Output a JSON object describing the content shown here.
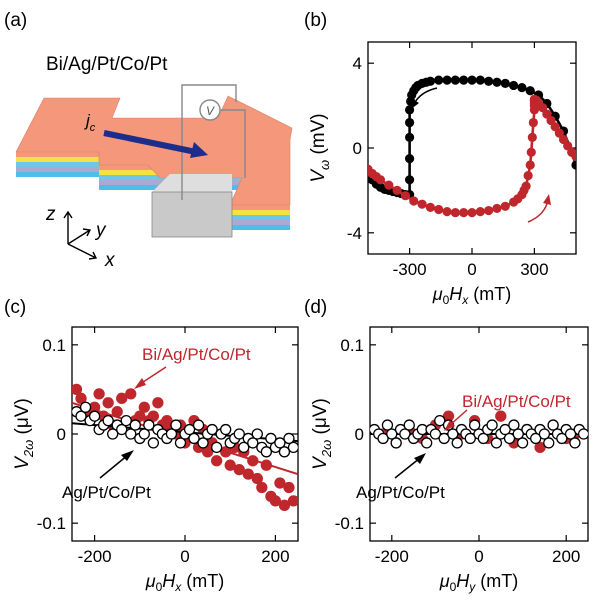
{
  "figure": {
    "panel_labels": [
      "(a)",
      "(b)",
      "(c)",
      "(d)"
    ],
    "colors": {
      "red": "#c0272d",
      "black": "#000000",
      "blue": "#1c2d8c",
      "orange": "#f4977a"
    }
  },
  "panel_a": {
    "title": "Bi/Ag/Pt/Co/Pt",
    "current_label": "j",
    "current_sub": "c",
    "voltmeter": "V",
    "axes": {
      "z": "z",
      "y": "y",
      "x": "x"
    }
  },
  "chart_data": [
    {
      "panel": "(b)",
      "type": "line",
      "xlabel_mu": "μ",
      "xlabel_sub0": "0",
      "xlabel_H": "H",
      "xlabel_sub": "x",
      "xlabel_unit": "(mT)",
      "ylabel_V": "V",
      "ylabel_sub": "ω",
      "ylabel_unit": "(mV)",
      "xlim": [
        -500,
        500
      ],
      "ylim": [
        -5,
        5
      ],
      "xticks": [
        -300,
        0,
        300
      ],
      "yticks": [
        4,
        0,
        -4
      ],
      "xtick_labels": [
        "-300",
        "0",
        "300"
      ],
      "ytick_labels": [
        "4",
        "0",
        "-4"
      ],
      "series": [
        {
          "color": "#000000",
          "x": [
            -500,
            -480,
            -460,
            -440,
            -420,
            -400,
            -380,
            -360,
            -340,
            -320,
            -300,
            -300,
            -300,
            -300,
            -300,
            -300,
            -295,
            -290,
            -280,
            -270,
            -260,
            -240,
            -220,
            -200,
            -160,
            -120,
            -80,
            -40,
            0,
            40,
            80,
            120,
            160,
            200,
            240,
            280,
            320,
            360,
            400,
            440,
            480,
            500
          ],
          "y": [
            -1.3,
            -1.5,
            -1.7,
            -1.85,
            -1.95,
            -2.0,
            -2.05,
            -2.1,
            -2.15,
            -2.2,
            -2.2,
            -1.5,
            -0.5,
            0.5,
            1.2,
            1.8,
            2.2,
            2.5,
            2.7,
            2.85,
            2.95,
            3.05,
            3.1,
            3.15,
            3.2,
            3.2,
            3.2,
            3.2,
            3.2,
            3.2,
            3.15,
            3.1,
            3.05,
            2.95,
            2.85,
            2.7,
            2.5,
            2.1,
            1.5,
            0.8,
            -0.2,
            -0.8
          ]
        },
        {
          "color": "#c0272d",
          "x": [
            -500,
            -480,
            -460,
            -440,
            -400,
            -360,
            -320,
            -280,
            -240,
            -200,
            -160,
            -120,
            -80,
            -40,
            0,
            40,
            80,
            120,
            160,
            200,
            220,
            240,
            250,
            260,
            270,
            280,
            285,
            290,
            295,
            300,
            300,
            300,
            300,
            300,
            300,
            310,
            320,
            340,
            360,
            380,
            400,
            420,
            440,
            460,
            480,
            500
          ],
          "y": [
            -1.0,
            -1.2,
            -1.35,
            -1.5,
            -1.75,
            -2.0,
            -2.25,
            -2.5,
            -2.65,
            -2.8,
            -2.9,
            -3.0,
            -3.05,
            -3.05,
            -3.05,
            -3.0,
            -2.95,
            -2.85,
            -2.75,
            -2.55,
            -2.4,
            -2.2,
            -2.0,
            -1.8,
            -1.3,
            -0.8,
            -0.2,
            0.5,
            1.2,
            1.8,
            2.0,
            2.1,
            2.2,
            2.25,
            2.3,
            2.25,
            2.1,
            1.9,
            1.6,
            1.3,
            1.0,
            0.7,
            0.4,
            0.1,
            -0.2,
            -0.4
          ]
        }
      ]
    },
    {
      "panel": "(c)",
      "type": "scatter",
      "xlabel_mu": "μ",
      "xlabel_sub0": "0",
      "xlabel_H": "H",
      "xlabel_sub": "x",
      "xlabel_unit": "(mT)",
      "ylabel_V": "V",
      "ylabel_sub": "2ω",
      "ylabel_unit": "(μV)",
      "xlim": [
        -250,
        250
      ],
      "ylim": [
        -0.12,
        0.12
      ],
      "xticks": [
        -200,
        0,
        200
      ],
      "yticks": [
        0.1,
        0,
        -0.1
      ],
      "xtick_labels": [
        "-200",
        "0",
        "200"
      ],
      "ytick_labels": [
        "0.1",
        "0",
        "-0.1"
      ],
      "annotations": [
        "Bi/Ag/Pt/Co/Pt",
        "Ag/Pt/Co/Pt"
      ],
      "series": [
        {
          "color": "#c0272d",
          "filled": true,
          "fit": [
            [
              -250,
              0.035
            ],
            [
              250,
              -0.045
            ]
          ],
          "x": [
            -240,
            -230,
            -220,
            -200,
            -190,
            -180,
            -170,
            -160,
            -150,
            -140,
            -120,
            -110,
            -100,
            -90,
            -80,
            -70,
            -60,
            -50,
            -40,
            -30,
            -20,
            -10,
            0,
            10,
            20,
            30,
            40,
            50,
            60,
            70,
            80,
            90,
            100,
            110,
            120,
            130,
            140,
            150,
            160,
            170,
            180,
            190,
            200,
            210,
            220,
            230,
            240
          ],
          "y": [
            0.05,
            0.04,
            0.025,
            0.03,
            0.045,
            0.02,
            0.035,
            0.01,
            0.025,
            0.04,
            0.045,
            0.015,
            0.02,
            0.03,
            0.015,
            0.02,
            0.035,
            0.01,
            0.015,
            0.005,
            0.0,
            0.01,
            -0.01,
            0.0,
            0.015,
            -0.015,
            0.005,
            -0.02,
            -0.01,
            -0.03,
            0.0,
            -0.02,
            -0.035,
            -0.015,
            -0.04,
            -0.02,
            -0.045,
            -0.03,
            -0.05,
            -0.06,
            -0.035,
            -0.07,
            -0.075,
            -0.055,
            -0.08,
            -0.06,
            -0.075
          ]
        },
        {
          "color": "#000000",
          "filled": false,
          "fit": [
            [
              -250,
              0.012
            ],
            [
              250,
              -0.008
            ]
          ],
          "x": [
            -240,
            -230,
            -220,
            -210,
            -200,
            -190,
            -180,
            -170,
            -160,
            -150,
            -140,
            -130,
            -120,
            -110,
            -100,
            -90,
            -80,
            -70,
            -60,
            -50,
            -40,
            -30,
            -20,
            -10,
            0,
            10,
            20,
            30,
            40,
            50,
            60,
            70,
            80,
            90,
            100,
            110,
            120,
            130,
            140,
            150,
            160,
            170,
            180,
            190,
            200,
            210,
            220,
            230,
            240
          ],
          "y": [
            0.025,
            0.02,
            0.03,
            0.015,
            0.02,
            0.005,
            0.01,
            0.015,
            0.0,
            0.01,
            0.005,
            0.015,
            0.0,
            0.01,
            -0.005,
            0.0,
            0.01,
            -0.01,
            0.005,
            0.0,
            -0.005,
            0.0,
            0.01,
            -0.01,
            0.0,
            0.005,
            -0.005,
            0.01,
            -0.01,
            0.0,
            0.005,
            -0.015,
            0.0,
            0.005,
            -0.01,
            -0.005,
            0.0,
            -0.015,
            -0.005,
            -0.01,
            0.0,
            -0.015,
            -0.02,
            -0.005,
            -0.015,
            -0.01,
            -0.02,
            -0.005,
            -0.015
          ]
        }
      ]
    },
    {
      "panel": "(d)",
      "type": "scatter",
      "xlabel_mu": "μ",
      "xlabel_sub0": "0",
      "xlabel_H": "H",
      "xlabel_sub": "y",
      "xlabel_unit": "(mT)",
      "ylabel_V": "V",
      "ylabel_sub": "2ω",
      "ylabel_unit": "(μV)",
      "xlim": [
        -250,
        250
      ],
      "ylim": [
        -0.12,
        0.12
      ],
      "xticks": [
        -200,
        0,
        200
      ],
      "yticks": [
        0.1,
        0,
        -0.1
      ],
      "xtick_labels": [
        "-200",
        "0",
        "200"
      ],
      "ytick_labels": [
        "0.1",
        "0",
        "-0.1"
      ],
      "annotations": [
        "Bi/Ag/Pt/Co/Pt",
        "Ag/Pt/Co/Pt"
      ],
      "series": [
        {
          "color": "#c0272d",
          "filled": true,
          "fit": [
            [
              -250,
              0.0
            ],
            [
              250,
              0.0
            ]
          ],
          "x": [
            -220,
            -190,
            -160,
            -130,
            -100,
            -70,
            -40,
            -10,
            20,
            50,
            80,
            110,
            140,
            170,
            200,
            220
          ],
          "y": [
            0.0,
            -0.01,
            0.005,
            -0.005,
            0.01,
            0.02,
            0.0,
            0.015,
            -0.005,
            0.02,
            -0.01,
            0.005,
            -0.015,
            0.01,
            -0.005,
            0.0
          ]
        },
        {
          "color": "#000000",
          "filled": false,
          "fit": [
            [
              -250,
              0.0
            ],
            [
              250,
              0.0
            ]
          ],
          "x": [
            -240,
            -230,
            -220,
            -210,
            -200,
            -190,
            -180,
            -170,
            -160,
            -150,
            -140,
            -130,
            -120,
            -110,
            -100,
            -90,
            -80,
            -70,
            -60,
            -50,
            -40,
            -30,
            -20,
            -10,
            0,
            10,
            20,
            30,
            40,
            50,
            60,
            70,
            80,
            90,
            100,
            110,
            120,
            130,
            140,
            150,
            160,
            170,
            180,
            190,
            200,
            210,
            220,
            230,
            240
          ],
          "y": [
            0.005,
            0.0,
            -0.005,
            0.01,
            0.0,
            -0.01,
            0.005,
            0.0,
            0.01,
            -0.005,
            0.0,
            0.005,
            -0.01,
            0.005,
            0.0,
            0.015,
            -0.005,
            0.01,
            0.0,
            -0.01,
            0.005,
            0.0,
            -0.005,
            0.01,
            0.0,
            -0.005,
            0.005,
            0.01,
            -0.01,
            0.0,
            0.005,
            -0.005,
            0.01,
            0.0,
            -0.01,
            0.005,
            0.0,
            -0.005,
            0.005,
            0.0,
            -0.01,
            0.01,
            0.0,
            -0.005,
            0.005,
            0.0,
            -0.01,
            0.005,
            0.0
          ]
        }
      ]
    }
  ]
}
